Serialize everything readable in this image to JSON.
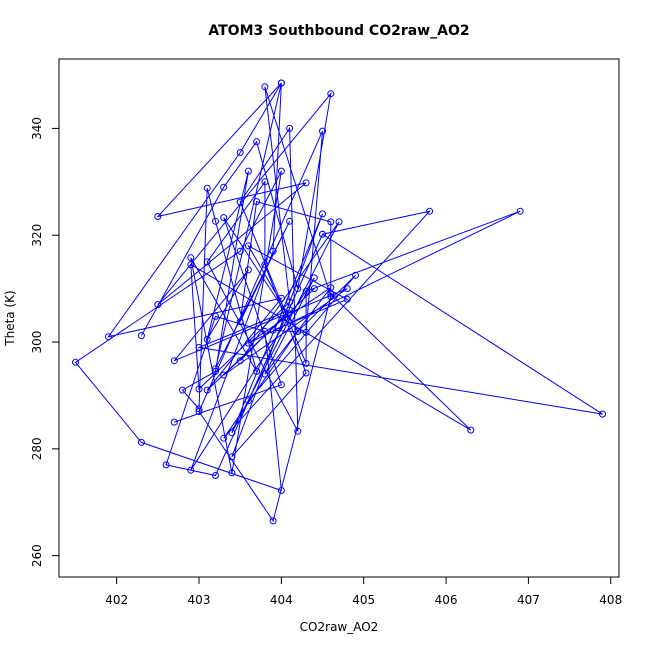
{
  "chart_data": {
    "type": "scatter",
    "mode": "lines+markers",
    "title": "ATOM3 Southbound CO2raw_AO2",
    "xlabel": "CO2raw_AO2",
    "ylabel": "Theta (K)",
    "xlim": [
      401.3,
      408.1
    ],
    "ylim": [
      256,
      353
    ],
    "xticks": [
      402,
      403,
      404,
      405,
      406,
      407,
      408
    ],
    "yticks": [
      260,
      280,
      300,
      320,
      340
    ],
    "color": "#0000ff",
    "marker": "open-circle",
    "grid": false,
    "legend": "none",
    "points": [
      [
        402.3,
        301.2
      ],
      [
        403.3,
        329.0
      ],
      [
        403.7,
        337.5
      ],
      [
        404.2,
        310.0
      ],
      [
        404.6,
        346.5
      ],
      [
        402.5,
        307.0
      ],
      [
        404.3,
        329.8
      ],
      [
        402.5,
        323.5
      ],
      [
        404.0,
        348.5
      ],
      [
        403.5,
        335.5
      ],
      [
        401.9,
        301.0
      ],
      [
        404.0,
        308.2
      ],
      [
        403.1,
        291.0
      ],
      [
        404.4,
        310.0
      ],
      [
        403.3,
        293.8
      ],
      [
        404.8,
        310.0
      ],
      [
        402.7,
        296.5
      ],
      [
        403.6,
        313.5
      ],
      [
        403.1,
        300.5
      ],
      [
        403.6,
        332.0
      ],
      [
        403.2,
        294.5
      ],
      [
        402.8,
        291.0
      ],
      [
        403.0,
        287.5
      ],
      [
        403.1,
        328.8
      ],
      [
        403.2,
        322.6
      ],
      [
        403.7,
        294.5
      ],
      [
        402.9,
        315.8
      ],
      [
        403.4,
        275.5
      ],
      [
        404.0,
        332.0
      ],
      [
        403.5,
        317.0
      ],
      [
        401.5,
        296.2
      ],
      [
        402.3,
        281.2
      ],
      [
        404.0,
        272.2
      ],
      [
        403.8,
        302.0
      ],
      [
        403.2,
        304.8
      ],
      [
        402.6,
        277.0
      ],
      [
        403.2,
        275.0
      ],
      [
        404.5,
        320.2
      ],
      [
        405.8,
        324.5
      ],
      [
        403.3,
        282.0
      ],
      [
        404.2,
        302.0
      ],
      [
        404.9,
        312.5
      ],
      [
        403.6,
        289.0
      ],
      [
        404.5,
        320.2
      ],
      [
        407.9,
        286.5
      ],
      [
        403.0,
        299.0
      ],
      [
        404.1,
        306.0
      ],
      [
        403.5,
        296.5
      ],
      [
        404.7,
        322.5
      ],
      [
        403.4,
        283.0
      ],
      [
        404.5,
        324.0
      ],
      [
        403.4,
        278.5
      ],
      [
        404.3,
        294.2
      ],
      [
        403.8,
        314.5
      ],
      [
        403.8,
        330.0
      ],
      [
        403.1,
        315.0
      ],
      [
        404.2,
        283.3
      ],
      [
        404.1,
        340.0
      ],
      [
        403.5,
        326.2
      ],
      [
        404.3,
        296.0
      ],
      [
        404.3,
        309.5
      ],
      [
        406.9,
        324.5
      ],
      [
        403.6,
        299.8
      ],
      [
        404.6,
        310.2
      ],
      [
        403.8,
        294.0
      ],
      [
        404.4,
        312.0
      ],
      [
        402.9,
        276.0
      ],
      [
        403.9,
        317.0
      ],
      [
        404.0,
        348.5
      ],
      [
        403.2,
        295.0
      ],
      [
        404.1,
        322.6
      ],
      [
        403.5,
        303.8
      ],
      [
        403.7,
        326.3
      ],
      [
        404.6,
        322.5
      ],
      [
        404.6,
        309.0
      ],
      [
        406.3,
        283.5
      ],
      [
        402.9,
        314.5
      ],
      [
        403.0,
        291.2
      ],
      [
        404.1,
        307.5
      ],
      [
        403.8,
        347.8
      ],
      [
        404.6,
        308.5
      ],
      [
        403.9,
        266.5
      ],
      [
        403.0,
        287.0
      ],
      [
        404.5,
        339.5
      ],
      [
        404.3,
        301.8
      ],
      [
        403.9,
        302.2
      ],
      [
        404.8,
        308.0
      ],
      [
        403.6,
        318.0
      ],
      [
        404.2,
        302.0
      ],
      [
        403.3,
        323.3
      ],
      [
        404.0,
        292.0
      ],
      [
        402.7,
        285.0
      ]
    ]
  }
}
